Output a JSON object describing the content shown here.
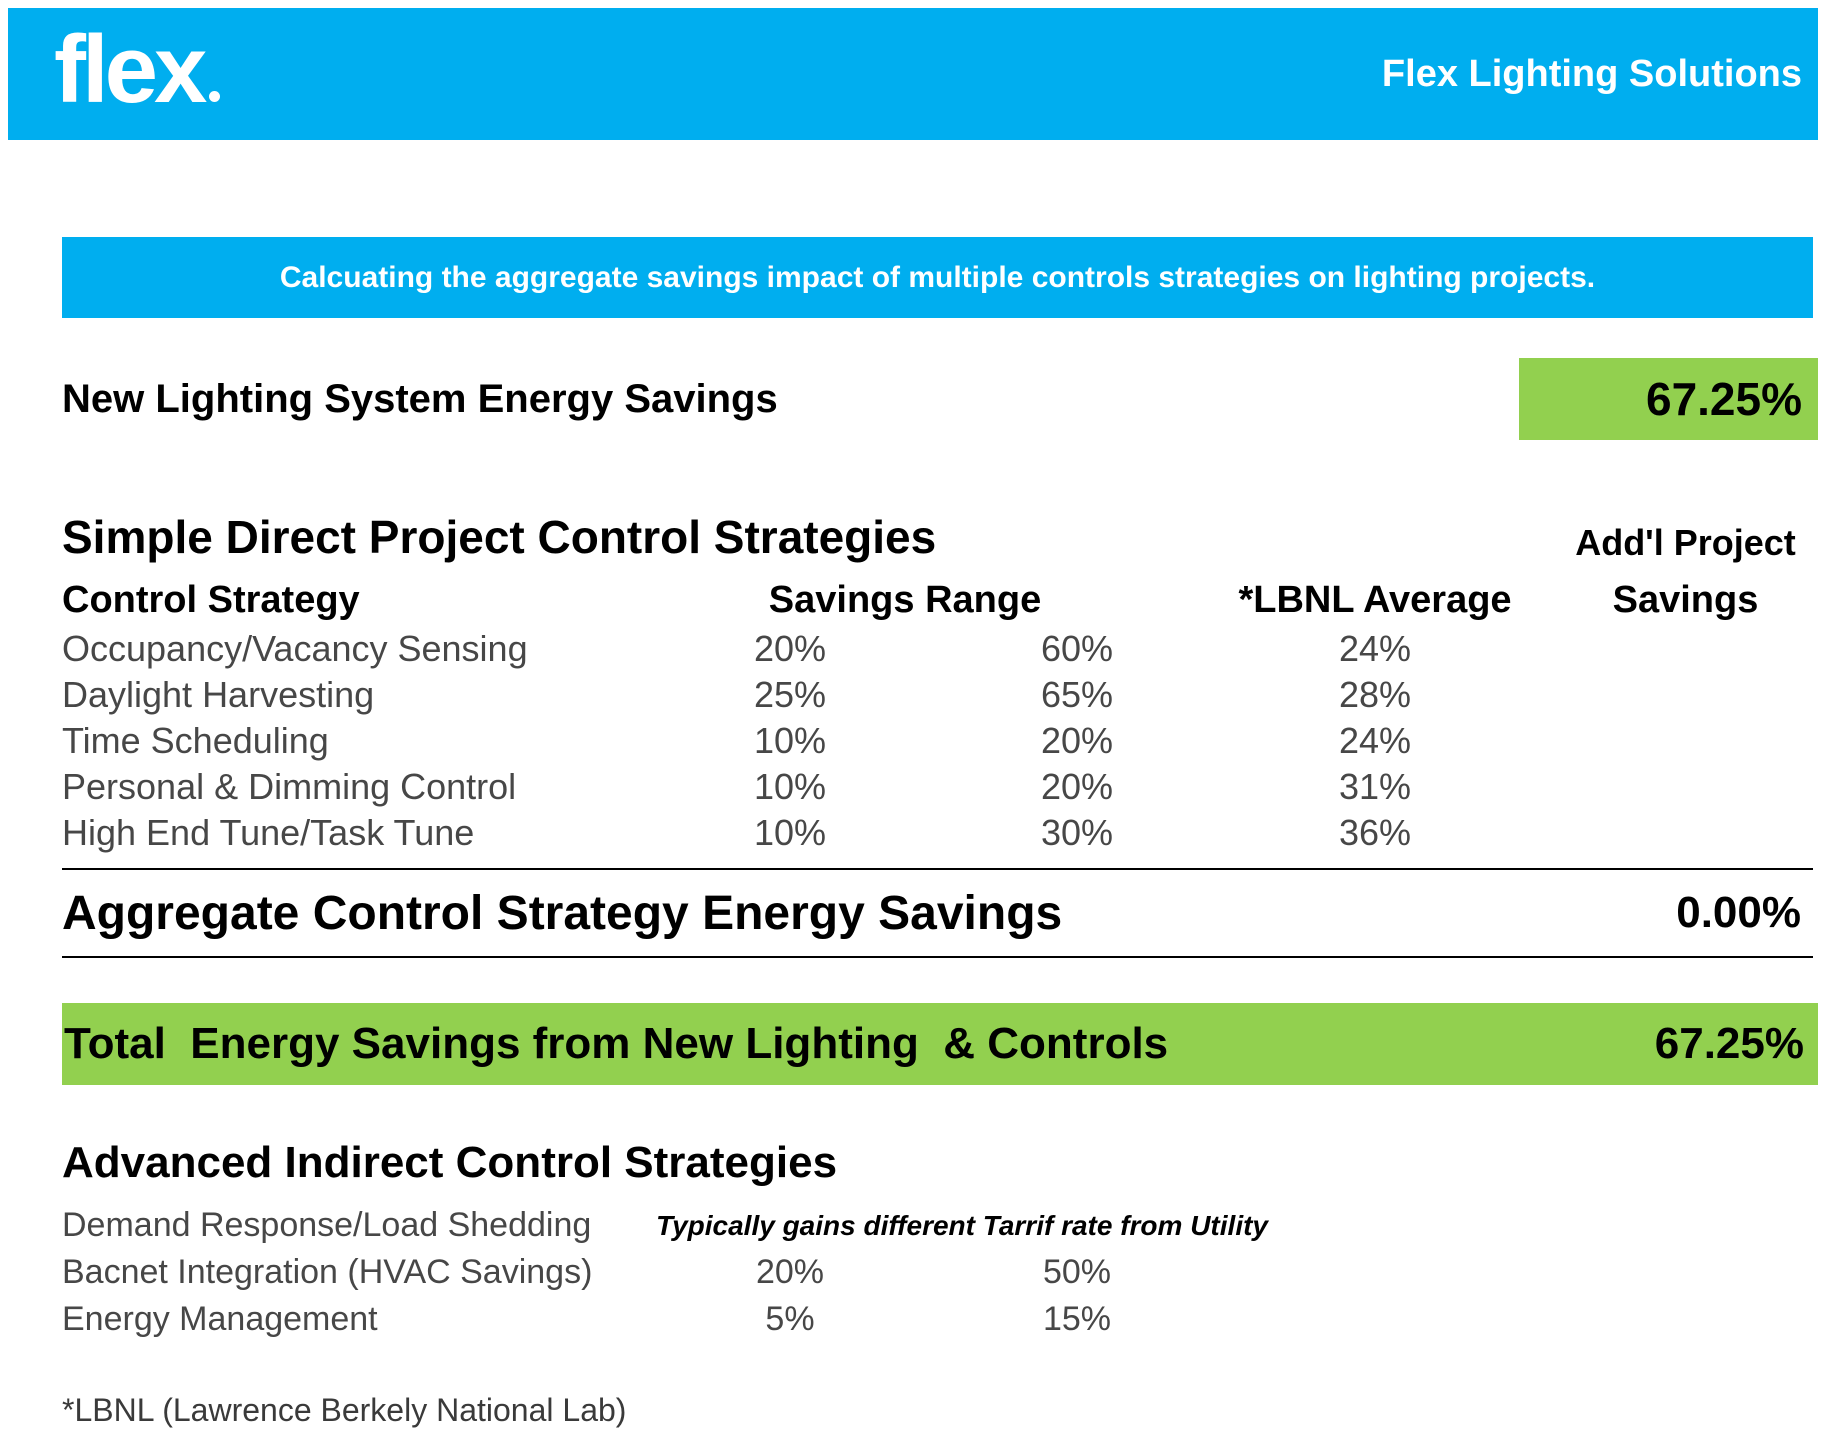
{
  "header": {
    "logo": "flex",
    "brand": "Flex Lighting Solutions"
  },
  "banner": {
    "text": "Calcuating the aggregate savings impact of multiple controls strategies on lighting projects."
  },
  "summary": {
    "label": "New Lighting System Energy Savings",
    "value": "67.25%"
  },
  "simple_section": {
    "title": "Simple Direct Project Control Strategies",
    "addl_header": "Add'l Project",
    "col_strategy": "Control Strategy",
    "col_savings_range": "Savings Range",
    "col_lbnl_average": "*LBNL Average",
    "col_addl_savings": "Savings",
    "rows": [
      {
        "strategy": "Occupancy/Vacancy Sensing",
        "range_low": "20%",
        "range_high": "60%",
        "lbnl_avg": "24%",
        "addl_savings": ""
      },
      {
        "strategy": "Daylight Harvesting",
        "range_low": "25%",
        "range_high": "65%",
        "lbnl_avg": "28%",
        "addl_savings": ""
      },
      {
        "strategy": "Time Scheduling",
        "range_low": "10%",
        "range_high": "20%",
        "lbnl_avg": "24%",
        "addl_savings": ""
      },
      {
        "strategy": "Personal & Dimming Control",
        "range_low": "10%",
        "range_high": "20%",
        "lbnl_avg": "31%",
        "addl_savings": ""
      },
      {
        "strategy": "High End Tune/Task Tune",
        "range_low": "10%",
        "range_high": "30%",
        "lbnl_avg": "36%",
        "addl_savings": ""
      }
    ]
  },
  "aggregate": {
    "label": "Aggregate Control Strategy Energy Savings",
    "value": "0.00%"
  },
  "total": {
    "label": "Total  Energy Savings from New Lighting  & Controls",
    "value": "67.25%"
  },
  "advanced_section": {
    "title": "Advanced Indirect Control Strategies",
    "rows": [
      {
        "label": "Demand Response/Load Shedding",
        "note": "Typically gains different Tarrif rate from Utility",
        "low": "",
        "high": ""
      },
      {
        "label": "Bacnet Integration (HVAC Savings)",
        "note": "",
        "low": "20%",
        "high": "50%"
      },
      {
        "label": "Energy Management",
        "note": "",
        "low": "5%",
        "high": "15%"
      }
    ]
  },
  "footnote": "*LBNL (Lawrence Berkely National Lab)",
  "colors": {
    "brand_cyan": "#00AEEF",
    "accent_green": "#92D04F",
    "body_text_gray": "#474747"
  }
}
